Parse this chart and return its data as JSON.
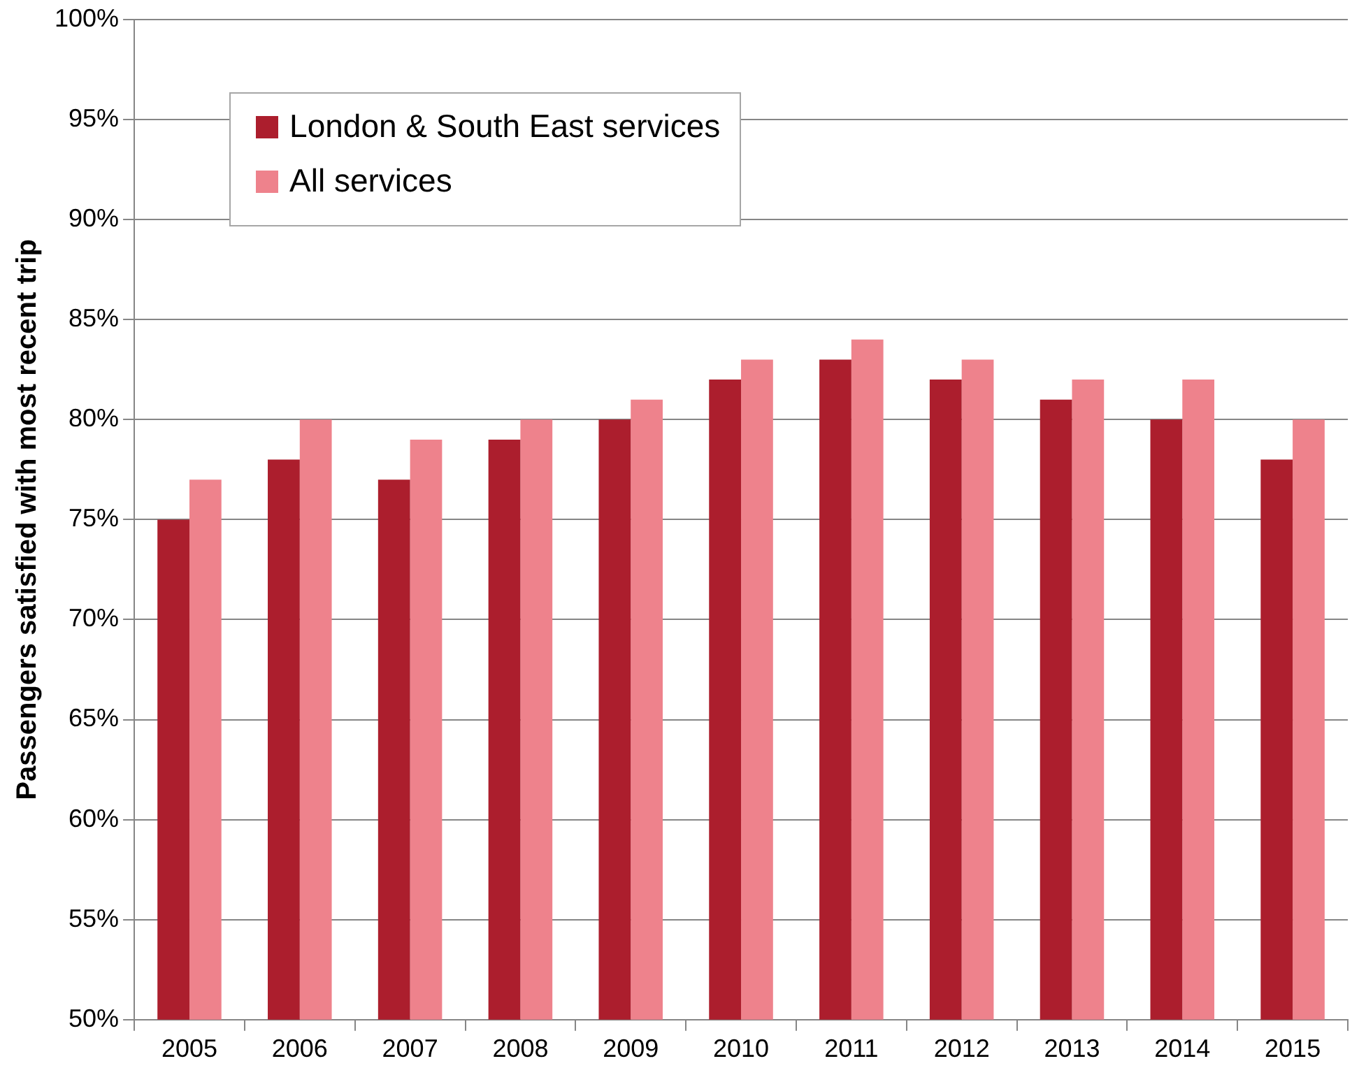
{
  "chart_data": {
    "type": "bar",
    "ylabel": "Passengers satisfied with most recent trip",
    "categories": [
      "2005",
      "2006",
      "2007",
      "2008",
      "2009",
      "2010",
      "2011",
      "2012",
      "2013",
      "2014",
      "2015"
    ],
    "series": [
      {
        "name": "London & South East services",
        "color": "#ac1e2d",
        "values": [
          75,
          78,
          77,
          79,
          80,
          82,
          83,
          82,
          81,
          80,
          78
        ]
      },
      {
        "name": "All services",
        "color": "#ee828c",
        "values": [
          77,
          80,
          79,
          80,
          81,
          83,
          84,
          83,
          82,
          82,
          80
        ]
      }
    ],
    "ylim": [
      50,
      100
    ],
    "yticks": [
      {
        "value": 50,
        "label": "50%"
      },
      {
        "value": 55,
        "label": "55%"
      },
      {
        "value": 60,
        "label": "60%"
      },
      {
        "value": 65,
        "label": "65%"
      },
      {
        "value": 70,
        "label": "70%"
      },
      {
        "value": 75,
        "label": "75%"
      },
      {
        "value": 80,
        "label": "80%"
      },
      {
        "value": 85,
        "label": "85%"
      },
      {
        "value": 90,
        "label": "90%"
      },
      {
        "value": 95,
        "label": "95%"
      },
      {
        "value": 100,
        "label": "100%"
      }
    ],
    "grid": "y",
    "legend": "top left"
  }
}
